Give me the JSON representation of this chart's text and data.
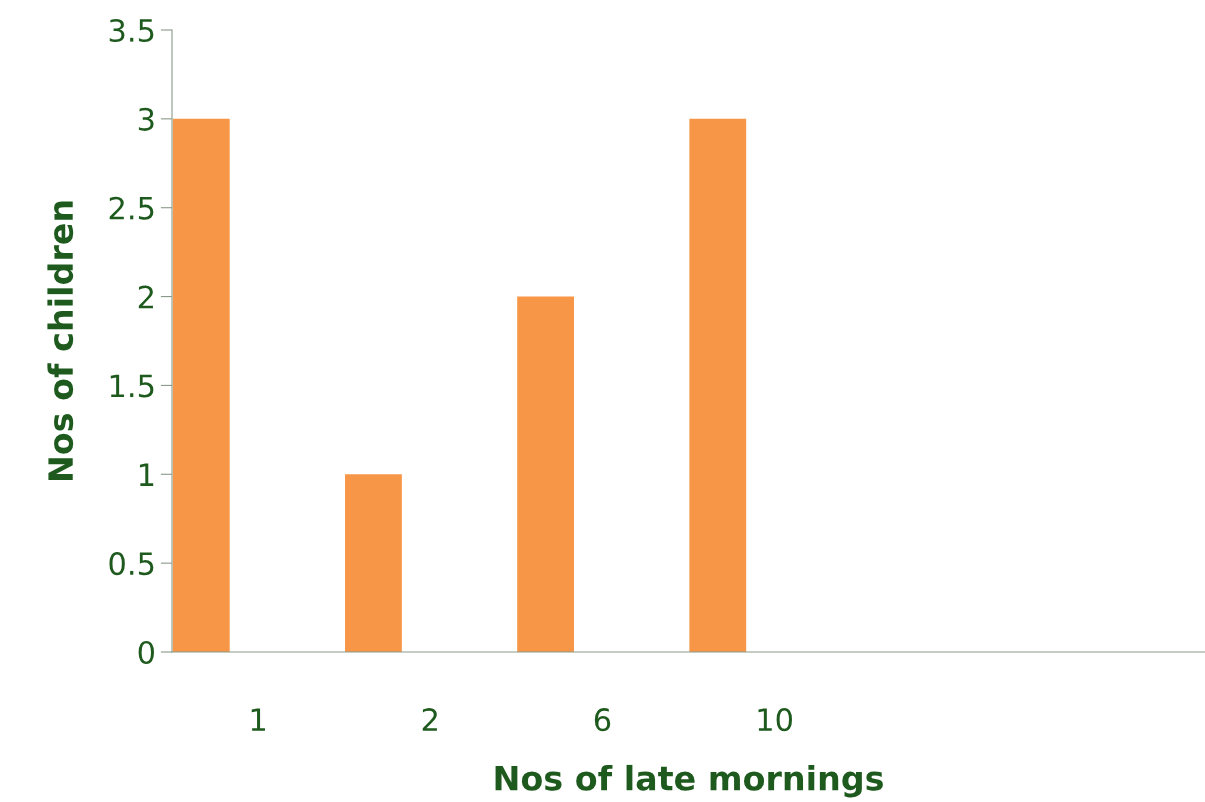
{
  "chart_data": {
    "type": "bar",
    "xlabel": "Nos of late mornings",
    "ylabel": "Nos of children",
    "categories": [
      "1",
      "2",
      "6",
      "10",
      null,
      null
    ],
    "values": [
      3,
      1,
      2,
      3,
      null,
      null
    ],
    "color": "#f79646",
    "ylim": [
      0,
      3.5
    ],
    "yticks": [
      0,
      0.5,
      1,
      1.5,
      2,
      2.5,
      3,
      3.5
    ],
    "grid": false
  }
}
